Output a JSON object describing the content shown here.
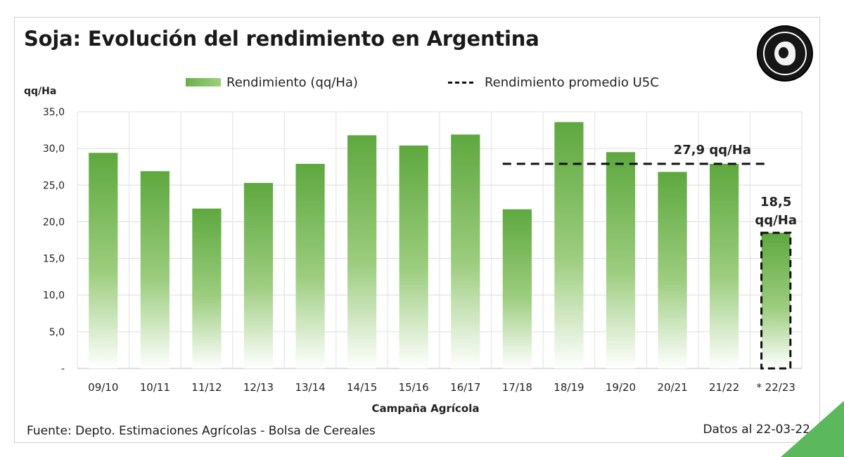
{
  "title": "Soja: Evolución del rendimiento en Argentina",
  "legend": {
    "bar_label": "Rendimiento (qq/Ha)",
    "line_label": "Rendimiento promedio U5C"
  },
  "footer": {
    "source": "Fuente: Depto. Estimaciones Agrícolas - Bolsa de Cereales",
    "date": "Datos al 22-03-22"
  },
  "colors": {
    "bar_top": "#5ea83f",
    "bar_bottom": "#ffffff",
    "dash": "#111111",
    "corner_accent": "#5cb85c"
  },
  "chart_data": {
    "type": "bar",
    "ylabel": "qq/Ha",
    "xlabel": "Campaña Agrícola",
    "ylim": [
      0,
      35
    ],
    "y_ticks": [
      0,
      5,
      10,
      15,
      20,
      25,
      30,
      35
    ],
    "y_tick_labels": [
      "-",
      "5,0",
      "10,0",
      "15,0",
      "20,0",
      "25,0",
      "30,0",
      "35,0"
    ],
    "grid": true,
    "legend_position": "top",
    "categories": [
      "09/10",
      "10/11",
      "11/12",
      "12/13",
      "13/14",
      "14/15",
      "15/16",
      "16/17",
      "17/18",
      "18/19",
      "19/20",
      "20/21",
      "21/22",
      "* 22/23"
    ],
    "series": [
      {
        "name": "Rendimiento (qq/Ha)",
        "values": [
          29.4,
          26.9,
          21.8,
          25.3,
          27.9,
          31.8,
          30.4,
          31.9,
          21.7,
          33.6,
          29.5,
          26.8,
          27.9,
          18.5
        ]
      }
    ],
    "average_line": {
      "name": "Rendimiento promedio U5C",
      "value": 27.9,
      "from_category": "17/18",
      "to_category": "* 22/23",
      "label": "27,9 qq/Ha"
    },
    "highlight": {
      "category": "* 22/23",
      "label_line1": "18,5",
      "label_line2": "qq/Ha"
    }
  }
}
